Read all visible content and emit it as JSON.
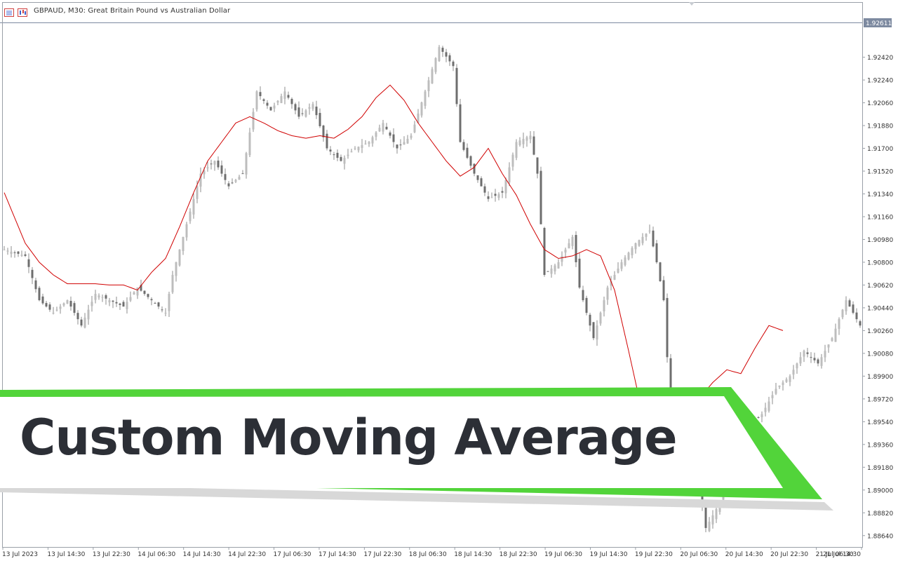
{
  "window": {
    "symbol_title": "GBPAUD, M30:  Great Britain Pound vs Australian Dollar",
    "current_price": "1.92611"
  },
  "banner": {
    "text": "Custom Moving Average",
    "accent_color": "#52d43a",
    "text_color": "#2c2f36"
  },
  "chart_data": {
    "type": "candlestick",
    "symbol": "GBPAUD",
    "timeframe": "M30",
    "ylim": [
      1.8855,
      1.9285
    ],
    "y_ticks": [
      "1.92420",
      "1.92240",
      "1.92060",
      "1.91880",
      "1.91700",
      "1.91520",
      "1.91340",
      "1.91160",
      "1.90980",
      "1.90800",
      "1.90620",
      "1.90440",
      "1.90260",
      "1.90080",
      "1.89900",
      "1.89720",
      "1.89540",
      "1.89360",
      "1.89180",
      "1.89000",
      "1.88820",
      "1.88640"
    ],
    "x_ticks": [
      "13 Jul 2023",
      "13 Jul 14:30",
      "13 Jul 22:30",
      "14 Jul 06:30",
      "14 Jul 14:30",
      "14 Jul 22:30",
      "17 Jul 06:30",
      "17 Jul 14:30",
      "17 Jul 22:30",
      "18 Jul 06:30",
      "18 Jul 14:30",
      "18 Jul 22:30",
      "19 Jul 06:30",
      "19 Jul 14:30",
      "19 Jul 22:30",
      "20 Jul 06:30",
      "20 Jul 14:30",
      "20 Jul 22:30",
      "21 Jul 06:30",
      "21 Jul 14:30"
    ],
    "price_path": [
      [
        0,
        1.909
      ],
      [
        6,
        1.9085
      ],
      [
        10,
        1.905
      ],
      [
        14,
        1.904
      ],
      [
        18,
        1.905
      ],
      [
        22,
        1.903
      ],
      [
        26,
        1.9055
      ],
      [
        30,
        1.905
      ],
      [
        34,
        1.9045
      ],
      [
        38,
        1.906
      ],
      [
        42,
        1.905
      ],
      [
        46,
        1.904
      ],
      [
        48,
        1.907
      ],
      [
        52,
        1.911
      ],
      [
        56,
        1.915
      ],
      [
        60,
        1.916
      ],
      [
        64,
        1.914
      ],
      [
        68,
        1.915
      ],
      [
        72,
        1.9215
      ],
      [
        76,
        1.92
      ],
      [
        80,
        1.9215
      ],
      [
        84,
        1.9195
      ],
      [
        88,
        1.9205
      ],
      [
        92,
        1.917
      ],
      [
        96,
        1.916
      ],
      [
        100,
        1.917
      ],
      [
        104,
        1.9175
      ],
      [
        108,
        1.919
      ],
      [
        112,
        1.917
      ],
      [
        116,
        1.918
      ],
      [
        120,
        1.9215
      ],
      [
        124,
        1.925
      ],
      [
        128,
        1.9235
      ],
      [
        130,
        1.9175
      ],
      [
        134,
        1.915
      ],
      [
        138,
        1.913
      ],
      [
        142,
        1.9135
      ],
      [
        146,
        1.9175
      ],
      [
        150,
        1.918
      ],
      [
        152,
        1.915
      ],
      [
        154,
        1.907
      ],
      [
        158,
        1.908
      ],
      [
        162,
        1.91
      ],
      [
        164,
        1.906
      ],
      [
        168,
        1.902
      ],
      [
        172,
        1.906
      ],
      [
        176,
        1.908
      ],
      [
        180,
        1.9095
      ],
      [
        184,
        1.9105
      ],
      [
        186,
        1.908
      ],
      [
        188,
        1.905
      ],
      [
        190,
        1.896
      ],
      [
        194,
        1.893
      ],
      [
        198,
        1.8905
      ],
      [
        200,
        1.887
      ],
      [
        204,
        1.889
      ],
      [
        208,
        1.893
      ],
      [
        212,
        1.895
      ],
      [
        216,
        1.896
      ],
      [
        220,
        1.898
      ],
      [
        224,
        1.899
      ],
      [
        228,
        1.901
      ],
      [
        232,
        1.9
      ],
      [
        236,
        1.902
      ],
      [
        240,
        1.905
      ],
      [
        244,
        1.903
      ]
    ],
    "ma_path": [
      [
        0,
        1.9135
      ],
      [
        6,
        1.9095
      ],
      [
        10,
        1.908
      ],
      [
        14,
        1.907
      ],
      [
        18,
        1.9063
      ],
      [
        22,
        1.9063
      ],
      [
        26,
        1.9063
      ],
      [
        30,
        1.9062
      ],
      [
        34,
        1.9062
      ],
      [
        38,
        1.9058
      ],
      [
        42,
        1.9072
      ],
      [
        46,
        1.9083
      ],
      [
        50,
        1.9108
      ],
      [
        54,
        1.9135
      ],
      [
        58,
        1.916
      ],
      [
        62,
        1.9175
      ],
      [
        66,
        1.919
      ],
      [
        70,
        1.9195
      ],
      [
        74,
        1.919
      ],
      [
        78,
        1.9184
      ],
      [
        82,
        1.918
      ],
      [
        86,
        1.9178
      ],
      [
        90,
        1.918
      ],
      [
        94,
        1.9178
      ],
      [
        98,
        1.9185
      ],
      [
        102,
        1.9195
      ],
      [
        106,
        1.921
      ],
      [
        110,
        1.922
      ],
      [
        114,
        1.9208
      ],
      [
        118,
        1.919
      ],
      [
        122,
        1.9175
      ],
      [
        126,
        1.916
      ],
      [
        130,
        1.9148
      ],
      [
        134,
        1.9155
      ],
      [
        138,
        1.917
      ],
      [
        142,
        1.915
      ],
      [
        146,
        1.9133
      ],
      [
        150,
        1.911
      ],
      [
        154,
        1.909
      ],
      [
        158,
        1.9083
      ],
      [
        162,
        1.9085
      ],
      [
        166,
        1.909
      ],
      [
        170,
        1.9085
      ],
      [
        174,
        1.9058
      ],
      [
        178,
        1.901
      ],
      [
        182,
        1.896
      ],
      [
        186,
        1.893
      ],
      [
        190,
        1.8948
      ],
      [
        194,
        1.896
      ],
      [
        198,
        1.8972
      ],
      [
        202,
        1.8985
      ],
      [
        206,
        1.8995
      ],
      [
        210,
        1.8992
      ],
      [
        214,
        1.9012
      ],
      [
        218,
        1.903
      ],
      [
        222,
        1.9026
      ]
    ]
  },
  "colors": {
    "candle": "#8c8c8c",
    "moving_average": "#d00000",
    "grid_frame": "#7d8aa0",
    "price_label_bg": "#7d8aa0"
  }
}
